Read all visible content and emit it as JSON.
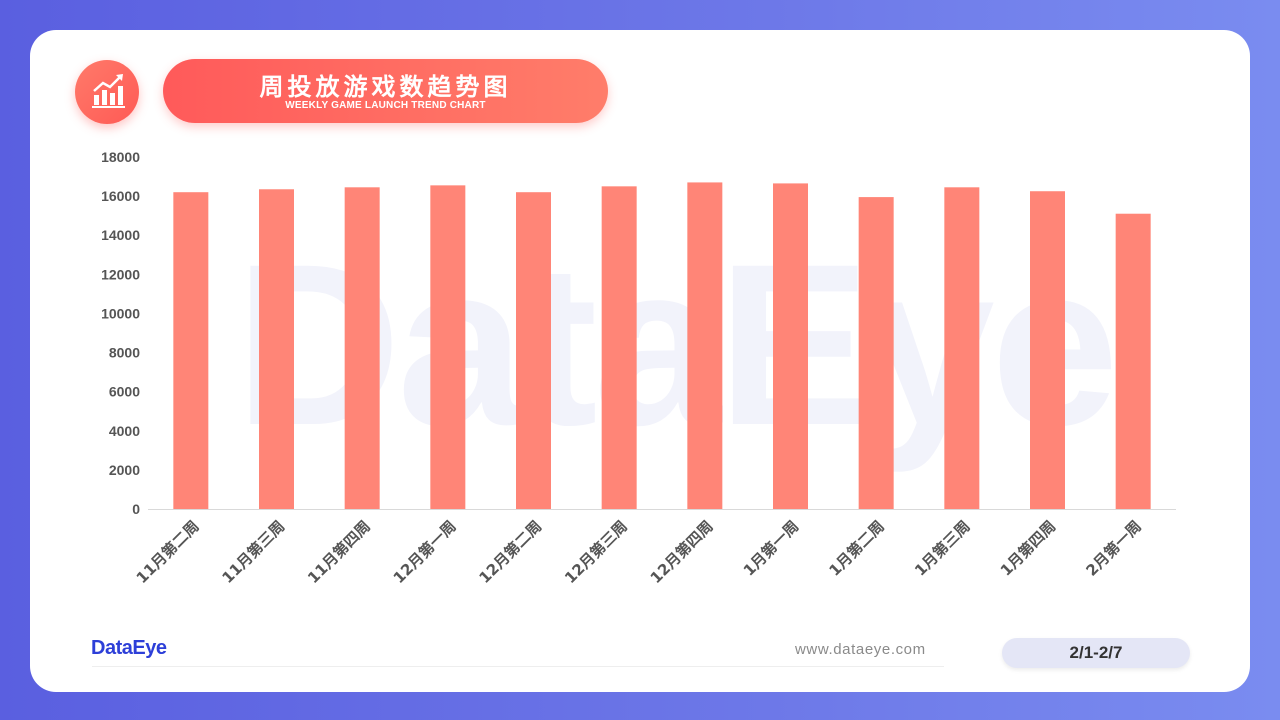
{
  "header": {
    "title": "周投放游戏数趋势图",
    "subtitle": "WEEKLY GAME LAUNCH TREND CHART",
    "icon": "bar-chart-icon"
  },
  "watermark": "DataEye",
  "footer": {
    "brand": "DataEye",
    "website": "www.dataeye.com",
    "date_range": "2/1-2/7"
  },
  "colors": {
    "background": "#5a5fe0",
    "accent": "#ff5a55",
    "bar": "#ff8577",
    "brand": "#2d3fd8"
  },
  "chart_data": {
    "type": "bar",
    "title": "周投放游戏数趋势图",
    "categories": [
      "11月第二周",
      "11月第三周",
      "11月第四周",
      "12月第一周",
      "12月第二周",
      "12月第三周",
      "12月第四周",
      "1月第一周",
      "1月第二周",
      "1月第三周",
      "1月第四周",
      "2月第一周"
    ],
    "values": [
      16200,
      16350,
      16450,
      16550,
      16200,
      16500,
      16700,
      16650,
      15950,
      16450,
      16250,
      15100
    ],
    "ylim": [
      0,
      18000
    ],
    "yticks": [
      "0",
      "2000",
      "4000",
      "6000",
      "8000",
      "10000",
      "12000",
      "14000",
      "16000",
      "18000"
    ],
    "xlabel": "",
    "ylabel": "",
    "grid": false,
    "legend": "none"
  }
}
